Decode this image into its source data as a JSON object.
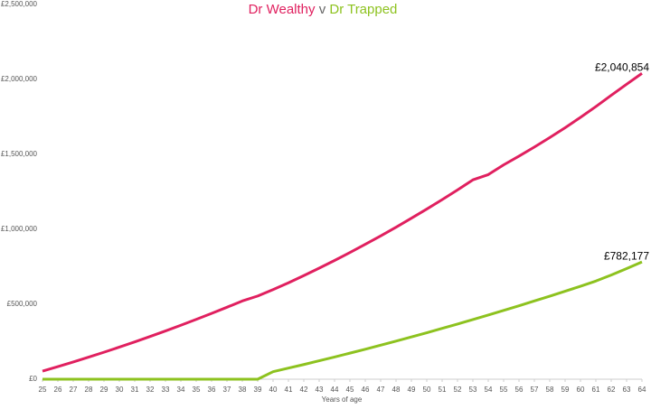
{
  "chart_data": {
    "type": "line",
    "title_separator": "v",
    "x_label": "Years of age",
    "x": [
      25,
      26,
      27,
      28,
      29,
      30,
      31,
      32,
      33,
      34,
      35,
      36,
      37,
      38,
      39,
      40,
      41,
      42,
      43,
      44,
      45,
      46,
      47,
      48,
      49,
      50,
      51,
      52,
      53,
      54,
      55,
      56,
      57,
      58,
      59,
      60,
      61,
      62,
      63,
      64
    ],
    "xlim": [
      25,
      64
    ],
    "xticks": [
      25,
      26,
      27,
      28,
      29,
      30,
      31,
      32,
      33,
      34,
      35,
      36,
      37,
      38,
      39,
      40,
      41,
      42,
      43,
      44,
      45,
      46,
      47,
      48,
      49,
      50,
      51,
      52,
      53,
      54,
      55,
      56,
      57,
      58,
      59,
      60,
      61,
      62,
      63,
      64
    ],
    "ylim": [
      0,
      2500000
    ],
    "yticks": [
      {
        "value": 0,
        "label": "£0"
      },
      {
        "value": 500000,
        "label": "£500,000"
      },
      {
        "value": 1000000,
        "label": "£1,000,000"
      },
      {
        "value": 1500000,
        "label": "£1,500,000"
      },
      {
        "value": 2000000,
        "label": "£2,000,000"
      },
      {
        "value": 2500000,
        "label": "£2,500,000"
      }
    ],
    "grid": false,
    "series": [
      {
        "name": "Dr Wealthy",
        "color": "#e0205f",
        "values": [
          54000,
          84000,
          115000,
          147000,
          180000,
          214000,
          249000,
          285000,
          322000,
          360000,
          399000,
          439000,
          480000,
          522000,
          555000,
          598000,
          643000,
          691000,
          741000,
          792000,
          845000,
          900000,
          956000,
          1014000,
          1074000,
          1135000,
          1198000,
          1263000,
          1330000,
          1365000,
          1430000,
          1488000,
          1549000,
          1612000,
          1678000,
          1747000,
          1819000,
          1894000,
          1968000,
          2040854
        ],
        "value_labels": [
          null,
          null,
          null,
          null,
          null,
          null,
          null,
          null,
          null,
          null,
          null,
          null,
          null,
          null,
          null,
          null,
          null,
          null,
          null,
          null,
          null,
          null,
          null,
          null,
          null,
          null,
          null,
          null,
          null,
          null,
          null,
          null,
          null,
          null,
          null,
          null,
          null,
          null,
          null,
          "£2,040,854"
        ]
      },
      {
        "name": "Dr Trapped",
        "color": "#8dc21f",
        "values": [
          0,
          0,
          0,
          0,
          0,
          0,
          0,
          0,
          0,
          0,
          0,
          0,
          0,
          0,
          0,
          50000,
          74000,
          98000,
          123000,
          148000,
          174000,
          200000,
          227000,
          254000,
          282000,
          310000,
          339000,
          368000,
          398000,
          428000,
          459000,
          490000,
          522000,
          554000,
          587000,
          620000,
          655000,
          695000,
          738000,
          782177
        ],
        "value_labels": [
          null,
          null,
          null,
          null,
          null,
          null,
          null,
          null,
          null,
          null,
          null,
          null,
          null,
          null,
          null,
          null,
          null,
          null,
          null,
          null,
          null,
          null,
          null,
          null,
          null,
          null,
          null,
          null,
          null,
          null,
          null,
          null,
          null,
          null,
          null,
          null,
          null,
          null,
          null,
          "£782,177"
        ]
      }
    ]
  }
}
